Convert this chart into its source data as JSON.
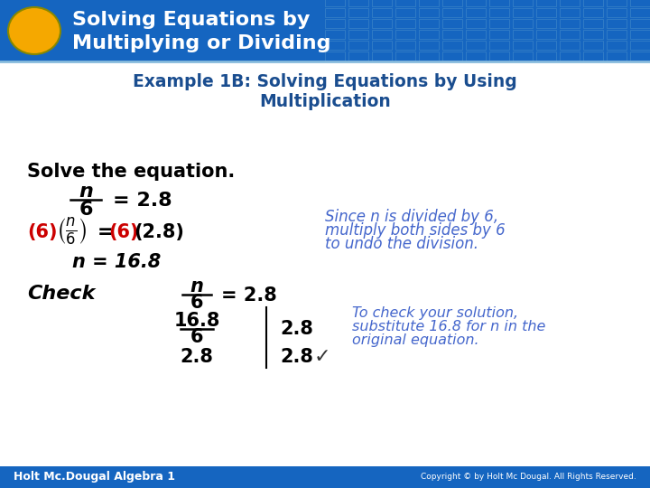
{
  "title_line1": "Solving Equations by",
  "title_line2": "Multiplying or Dividing",
  "subtitle_line1": "Example 1B: Solving Equations by Using",
  "subtitle_line2": "Multiplication",
  "header_bg_color": "#1565C0",
  "header_text_color": "#FFFFFF",
  "subtitle_text_color": "#1a4d8f",
  "body_bg_color": "#FFFFFF",
  "oval_color": "#F5A800",
  "grid_color": "#5599CC",
  "footer_text": "Holt Mc.Dougal Algebra 1",
  "footer_bg_color": "#1565C0",
  "footer_text_color": "#FFFFFF",
  "copyright_text": "Copyright © by Holt Mc Dougal. All Rights Reserved.",
  "solve_label": "Solve the equation.",
  "eq1_num": "n",
  "eq1_den": "6",
  "eq1_rhs": "= 2.8",
  "step2_left": "(6)",
  "step2_frac_n": "n",
  "step2_frac_d": "6",
  "step2_rhs": "= (6)(2.8)",
  "step3": "n = 16.8",
  "check_label": "Check",
  "check_frac_n": "n",
  "check_frac_d": "6",
  "check_rhs": "= 2.8",
  "check_row1_l": "16.8",
  "check_row1_d": "6",
  "check_row1_r": "2.8",
  "check_row2_l": "2.8",
  "check_row2_r": "2.8",
  "note_line1": "Since n is divided by 6,",
  "note_line2": "multiply both sides by 6",
  "note_line3": "to undo the division.",
  "note2_line1": "To check your solution,",
  "note2_line2": "substitute 16.8 for n in the",
  "note2_line3": "original equation.",
  "red_color": "#CC0000",
  "blue_note_color": "#4466CC",
  "black_color": "#000000",
  "checkmark_color": "#333333"
}
